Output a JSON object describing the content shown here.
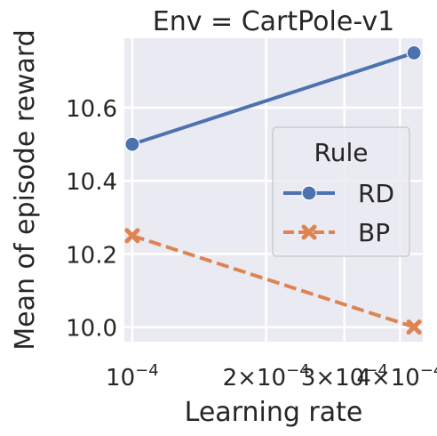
{
  "chart_data": {
    "type": "line",
    "title": "Env = CartPole-v1",
    "xlabel": "Learning rate",
    "ylabel": "Mean of episode reward",
    "xscale": "log",
    "xlim": [
      9.6e-05,
      0.00045
    ],
    "ylim": [
      9.96,
      10.79
    ],
    "x_ticks": [
      {
        "value": 0.0001,
        "label": "10^-4"
      },
      {
        "value": 0.0002,
        "label": "2×10^-4"
      },
      {
        "value": 0.0003,
        "label": "3×10^-4"
      },
      {
        "value": 0.0004,
        "label": "4×10^-4"
      }
    ],
    "y_ticks": [
      10.0,
      10.2,
      10.4,
      10.6
    ],
    "y_tick_labels": [
      "10.0",
      "10.2",
      "10.4",
      "10.6"
    ],
    "x": [
      0.0001,
      0.00043
    ],
    "series": [
      {
        "name": "RD",
        "values": [
          10.5,
          10.75
        ],
        "color": "#4c72b0",
        "marker": "circle",
        "dash": "solid"
      },
      {
        "name": "BP",
        "values": [
          10.25,
          10.0
        ],
        "color": "#dd8452",
        "marker": "x",
        "dash": "dashed"
      }
    ],
    "legend": {
      "title": "Rule",
      "placement": "center-right"
    },
    "grid": true,
    "background": "#eaeaf2"
  }
}
